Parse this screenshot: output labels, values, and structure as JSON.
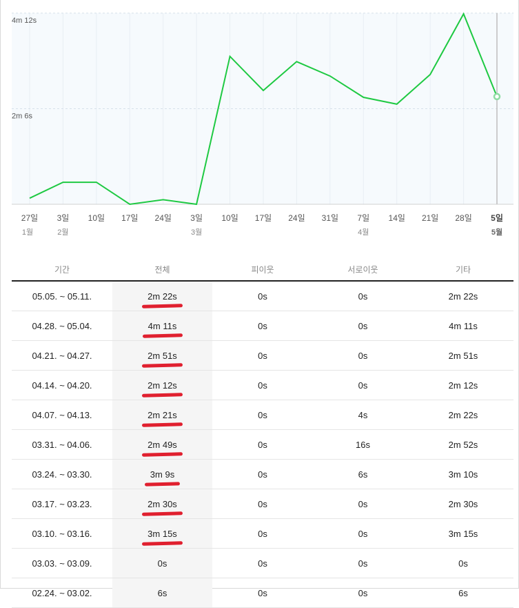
{
  "chart_data": {
    "type": "line",
    "y_tick_labels": [
      "4m 12s",
      "2m 6s"
    ],
    "y_ticks_seconds": [
      252,
      126
    ],
    "y_range_seconds": [
      0,
      252
    ],
    "x": [
      "27일",
      "3일",
      "10일",
      "17일",
      "24일",
      "3일",
      "10일",
      "17일",
      "24일",
      "31일",
      "7일",
      "14일",
      "21일",
      "28일",
      "5일"
    ],
    "month_labels": [
      {
        "index": 0,
        "label": "1월"
      },
      {
        "index": 1,
        "label": "2월"
      },
      {
        "index": 5,
        "label": "3월"
      },
      {
        "index": 10,
        "label": "4월"
      },
      {
        "index": 14,
        "label": "5월"
      }
    ],
    "series": [
      {
        "values": [
          8,
          29,
          29,
          0,
          6,
          0,
          195,
          150,
          188,
          169,
          141,
          132,
          171,
          251,
          142
        ]
      }
    ],
    "highlight_index": 14,
    "line_color": "#1ec942",
    "grid": true
  },
  "table": {
    "headers": [
      "기간",
      "전체",
      "피이웃",
      "서로이웃",
      "기타"
    ],
    "rows": [
      {
        "period": "05.05. ~ 05.11.",
        "total": "2m 22s",
        "pi": "0s",
        "seo": "0s",
        "etc": "2m 22s",
        "marked": true
      },
      {
        "period": "04.28. ~ 05.04.",
        "total": "4m 11s",
        "pi": "0s",
        "seo": "0s",
        "etc": "4m 11s",
        "marked": true
      },
      {
        "period": "04.21. ~ 04.27.",
        "total": "2m 51s",
        "pi": "0s",
        "seo": "0s",
        "etc": "2m 51s",
        "marked": true
      },
      {
        "period": "04.14. ~ 04.20.",
        "total": "2m 12s",
        "pi": "0s",
        "seo": "0s",
        "etc": "2m 12s",
        "marked": true
      },
      {
        "period": "04.07. ~ 04.13.",
        "total": "2m 21s",
        "pi": "0s",
        "seo": "4s",
        "etc": "2m 22s",
        "marked": true
      },
      {
        "period": "03.31. ~ 04.06.",
        "total": "2m 49s",
        "pi": "0s",
        "seo": "16s",
        "etc": "2m 52s",
        "marked": true
      },
      {
        "period": "03.24. ~ 03.30.",
        "total": "3m 9s",
        "pi": "0s",
        "seo": "6s",
        "etc": "3m 10s",
        "marked": true
      },
      {
        "period": "03.17. ~ 03.23.",
        "total": "2m 30s",
        "pi": "0s",
        "seo": "0s",
        "etc": "2m 30s",
        "marked": true
      },
      {
        "period": "03.10. ~ 03.16.",
        "total": "3m 15s",
        "pi": "0s",
        "seo": "0s",
        "etc": "3m 15s",
        "marked": true
      },
      {
        "period": "03.03. ~ 03.09.",
        "total": "0s",
        "pi": "0s",
        "seo": "0s",
        "etc": "0s",
        "marked": false
      },
      {
        "period": "02.24. ~ 03.02.",
        "total": "6s",
        "pi": "0s",
        "seo": "0s",
        "etc": "6s",
        "marked": false
      }
    ],
    "mark_color": "#e0202f"
  }
}
